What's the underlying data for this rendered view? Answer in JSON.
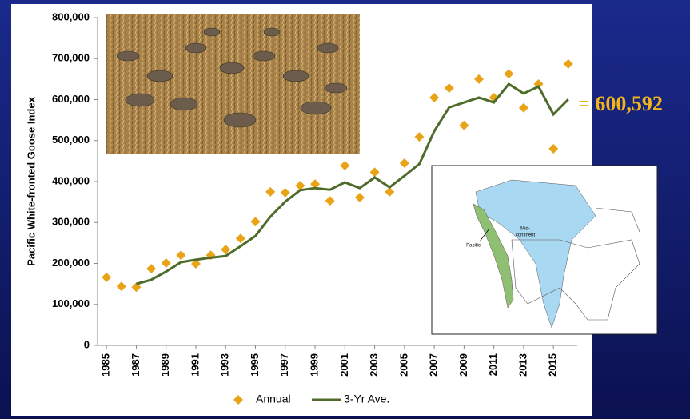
{
  "chart_data": {
    "type": "line",
    "y_label": "Pacific White-fronted  Goose Index",
    "x": [
      1985,
      1986,
      1987,
      1988,
      1989,
      1990,
      1991,
      1992,
      1993,
      1994,
      1995,
      1996,
      1997,
      1998,
      1999,
      2000,
      2001,
      2002,
      2003,
      2004,
      2005,
      2006,
      2007,
      2008,
      2009,
      2010,
      2011,
      2012,
      2013,
      2014,
      2015,
      2016
    ],
    "series": [
      {
        "name": "Annual",
        "style": "markers",
        "color": "#e8a317",
        "values": [
          166000,
          144000,
          142000,
          187000,
          201000,
          220000,
          199000,
          220000,
          234000,
          261000,
          302000,
          375000,
          373000,
          390000,
          394000,
          353000,
          439000,
          361000,
          423000,
          375000,
          445000,
          509000,
          605000,
          628000,
          537000,
          650000,
          605000,
          663000,
          580000,
          638000,
          480000,
          687000
        ]
      },
      {
        "name": "3-Yr Ave.",
        "style": "line",
        "color": "#4f6b2a",
        "values": [
          null,
          null,
          150000,
          160000,
          180000,
          203000,
          209000,
          214000,
          218000,
          242000,
          267000,
          314000,
          351000,
          379000,
          384000,
          380000,
          398000,
          384000,
          410000,
          386000,
          414000,
          443000,
          523000,
          581000,
          593000,
          605000,
          593000,
          638000,
          615000,
          632000,
          564000,
          600592
        ]
      }
    ],
    "xlim": [
      1984.4,
      2016.6
    ],
    "xticks": [
      1985,
      1987,
      1989,
      1991,
      1993,
      1995,
      1997,
      1999,
      2001,
      2003,
      2005,
      2007,
      2009,
      2011,
      2013,
      2015
    ],
    "ylim": [
      0,
      800000
    ],
    "yticks": [
      0,
      {
        "value": 100000,
        "label": "100,000"
      },
      {
        "value": 200000,
        "label": "200,000"
      },
      {
        "value": 300000,
        "label": "300,000"
      },
      {
        "value": 400000,
        "label": "400,000"
      },
      {
        "value": 500000,
        "label": "500,000"
      },
      {
        "value": 600000,
        "label": "600,000"
      },
      {
        "value": 700000,
        "label": "700,000"
      },
      {
        "value": 800000,
        "label": "800,000"
      }
    ],
    "grid": false,
    "legend": "bottom",
    "annotations": [
      {
        "text": "= 600,592"
      }
    ]
  },
  "inset_map": {
    "labels": [
      "Mid-",
      "continent",
      "Pacific"
    ]
  }
}
